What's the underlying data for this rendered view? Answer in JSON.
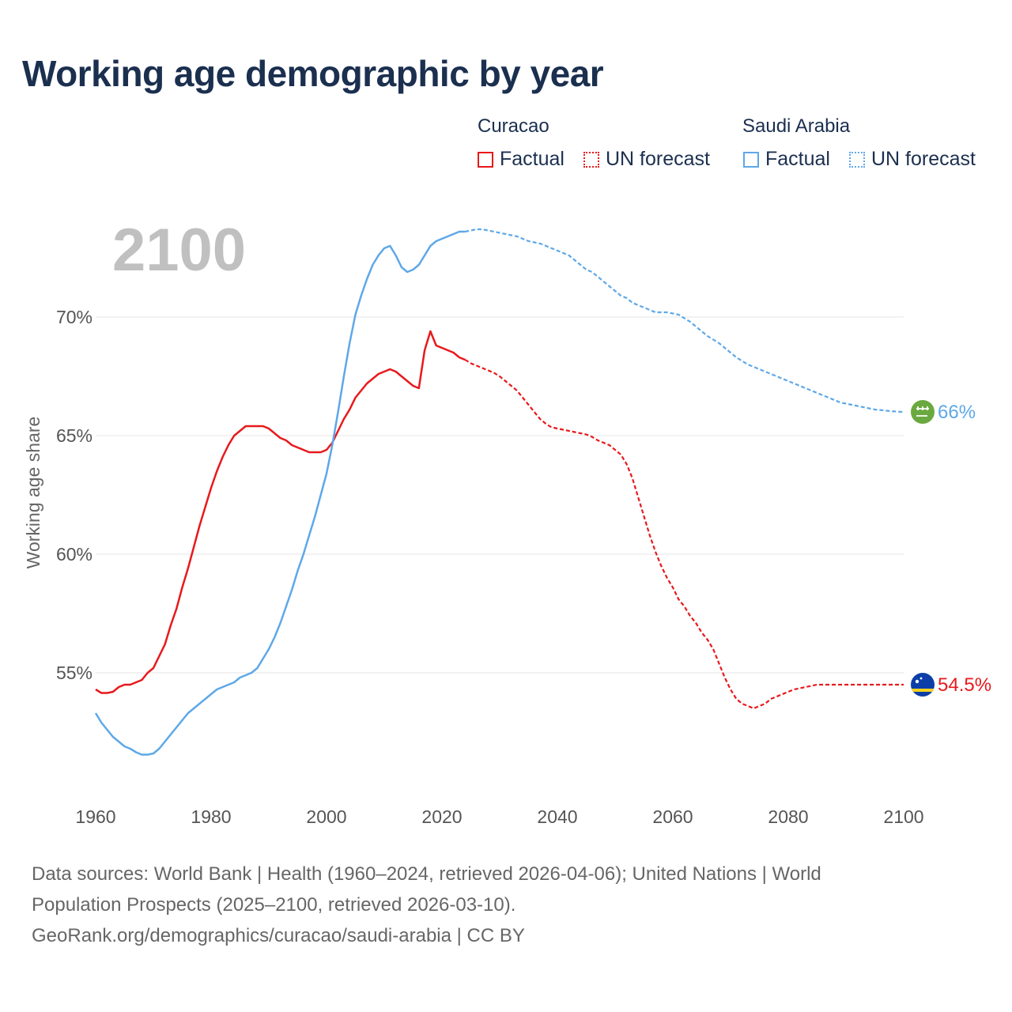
{
  "chart_data": {
    "type": "line",
    "title": "Working age demographic by year",
    "ylabel": "Working age share",
    "xlabel": "",
    "xlim": [
      1960,
      2100
    ],
    "ylim": [
      51,
      73.5
    ],
    "x_ticks": [
      1960,
      1980,
      2000,
      2020,
      2040,
      2060,
      2080,
      2100
    ],
    "y_ticks": [
      {
        "value": 55,
        "label": "55%"
      },
      {
        "value": 60,
        "label": "60%"
      },
      {
        "value": 65,
        "label": "65%"
      },
      {
        "value": 70,
        "label": "70%"
      }
    ],
    "year_overlay": "2100",
    "factual_end_year": 2024,
    "series": [
      {
        "name": "Curacao",
        "color": "#e8191c",
        "end_label": "54.5%",
        "flag": "curacao-flag",
        "points": [
          [
            1960,
            54.3
          ],
          [
            1961,
            54.15
          ],
          [
            1962,
            54.15
          ],
          [
            1963,
            54.2
          ],
          [
            1964,
            54.4
          ],
          [
            1965,
            54.5
          ],
          [
            1966,
            54.5
          ],
          [
            1967,
            54.6
          ],
          [
            1968,
            54.7
          ],
          [
            1969,
            55.0
          ],
          [
            1970,
            55.2
          ],
          [
            1971,
            55.7
          ],
          [
            1972,
            56.2
          ],
          [
            1973,
            57.0
          ],
          [
            1974,
            57.7
          ],
          [
            1975,
            58.6
          ],
          [
            1976,
            59.4
          ],
          [
            1977,
            60.3
          ],
          [
            1978,
            61.2
          ],
          [
            1979,
            62.0
          ],
          [
            1980,
            62.8
          ],
          [
            1981,
            63.5
          ],
          [
            1982,
            64.1
          ],
          [
            1983,
            64.6
          ],
          [
            1984,
            65.0
          ],
          [
            1985,
            65.2
          ],
          [
            1986,
            65.4
          ],
          [
            1987,
            65.4
          ],
          [
            1988,
            65.4
          ],
          [
            1989,
            65.4
          ],
          [
            1990,
            65.3
          ],
          [
            1991,
            65.1
          ],
          [
            1992,
            64.9
          ],
          [
            1993,
            64.8
          ],
          [
            1994,
            64.6
          ],
          [
            1995,
            64.5
          ],
          [
            1996,
            64.4
          ],
          [
            1997,
            64.3
          ],
          [
            1998,
            64.3
          ],
          [
            1999,
            64.3
          ],
          [
            2000,
            64.4
          ],
          [
            2001,
            64.7
          ],
          [
            2002,
            65.2
          ],
          [
            2003,
            65.7
          ],
          [
            2004,
            66.1
          ],
          [
            2005,
            66.6
          ],
          [
            2006,
            66.9
          ],
          [
            2007,
            67.2
          ],
          [
            2008,
            67.4
          ],
          [
            2009,
            67.6
          ],
          [
            2010,
            67.7
          ],
          [
            2011,
            67.8
          ],
          [
            2012,
            67.7
          ],
          [
            2013,
            67.5
          ],
          [
            2014,
            67.3
          ],
          [
            2015,
            67.1
          ],
          [
            2016,
            67.0
          ],
          [
            2017,
            68.6
          ],
          [
            2018,
            69.4
          ],
          [
            2019,
            68.8
          ],
          [
            2020,
            68.7
          ],
          [
            2021,
            68.6
          ],
          [
            2022,
            68.5
          ],
          [
            2023,
            68.3
          ],
          [
            2024,
            68.2
          ],
          [
            2025,
            68.05
          ],
          [
            2026,
            67.95
          ],
          [
            2027,
            67.85
          ],
          [
            2028,
            67.75
          ],
          [
            2029,
            67.65
          ],
          [
            2030,
            67.5
          ],
          [
            2031,
            67.3
          ],
          [
            2032,
            67.1
          ],
          [
            2033,
            66.9
          ],
          [
            2034,
            66.6
          ],
          [
            2035,
            66.3
          ],
          [
            2036,
            66.0
          ],
          [
            2037,
            65.7
          ],
          [
            2038,
            65.5
          ],
          [
            2039,
            65.35
          ],
          [
            2040,
            65.3
          ],
          [
            2041,
            65.25
          ],
          [
            2042,
            65.2
          ],
          [
            2043,
            65.15
          ],
          [
            2044,
            65.1
          ],
          [
            2045,
            65.05
          ],
          [
            2046,
            64.95
          ],
          [
            2047,
            64.8
          ],
          [
            2048,
            64.7
          ],
          [
            2049,
            64.6
          ],
          [
            2050,
            64.4
          ],
          [
            2051,
            64.2
          ],
          [
            2052,
            63.8
          ],
          [
            2053,
            63.2
          ],
          [
            2054,
            62.4
          ],
          [
            2055,
            61.6
          ],
          [
            2056,
            60.8
          ],
          [
            2057,
            60.1
          ],
          [
            2058,
            59.5
          ],
          [
            2059,
            59.0
          ],
          [
            2060,
            58.6
          ],
          [
            2061,
            58.1
          ],
          [
            2062,
            57.8
          ],
          [
            2063,
            57.4
          ],
          [
            2064,
            57.1
          ],
          [
            2065,
            56.7
          ],
          [
            2066,
            56.4
          ],
          [
            2067,
            56.0
          ],
          [
            2068,
            55.4
          ],
          [
            2069,
            54.8
          ],
          [
            2070,
            54.3
          ],
          [
            2071,
            53.9
          ],
          [
            2072,
            53.7
          ],
          [
            2073,
            53.6
          ],
          [
            2074,
            53.5
          ],
          [
            2075,
            53.6
          ],
          [
            2076,
            53.7
          ],
          [
            2077,
            53.9
          ],
          [
            2078,
            54.0
          ],
          [
            2079,
            54.1
          ],
          [
            2080,
            54.2
          ],
          [
            2081,
            54.3
          ],
          [
            2082,
            54.35
          ],
          [
            2083,
            54.4
          ],
          [
            2084,
            54.45
          ],
          [
            2085,
            54.5
          ],
          [
            2086,
            54.5
          ],
          [
            2087,
            54.5
          ],
          [
            2088,
            54.5
          ],
          [
            2089,
            54.5
          ],
          [
            2090,
            54.5
          ],
          [
            2091,
            54.5
          ],
          [
            2092,
            54.5
          ],
          [
            2093,
            54.5
          ],
          [
            2094,
            54.5
          ],
          [
            2095,
            54.5
          ],
          [
            2096,
            54.5
          ],
          [
            2097,
            54.5
          ],
          [
            2098,
            54.5
          ],
          [
            2099,
            54.5
          ],
          [
            2100,
            54.5
          ]
        ]
      },
      {
        "name": "Saudi Arabia",
        "color": "#5ea8e8",
        "end_label": "66%",
        "flag": "saudi-arabia-flag",
        "points": [
          [
            1960,
            53.3
          ],
          [
            1961,
            52.9
          ],
          [
            1962,
            52.6
          ],
          [
            1963,
            52.3
          ],
          [
            1964,
            52.1
          ],
          [
            1965,
            51.9
          ],
          [
            1966,
            51.8
          ],
          [
            1967,
            51.65
          ],
          [
            1968,
            51.55
          ],
          [
            1969,
            51.55
          ],
          [
            1970,
            51.6
          ],
          [
            1971,
            51.8
          ],
          [
            1972,
            52.1
          ],
          [
            1973,
            52.4
          ],
          [
            1974,
            52.7
          ],
          [
            1975,
            53.0
          ],
          [
            1976,
            53.3
          ],
          [
            1977,
            53.5
          ],
          [
            1978,
            53.7
          ],
          [
            1979,
            53.9
          ],
          [
            1980,
            54.1
          ],
          [
            1981,
            54.3
          ],
          [
            1982,
            54.4
          ],
          [
            1983,
            54.5
          ],
          [
            1984,
            54.6
          ],
          [
            1985,
            54.8
          ],
          [
            1986,
            54.9
          ],
          [
            1987,
            55.0
          ],
          [
            1988,
            55.2
          ],
          [
            1989,
            55.6
          ],
          [
            1990,
            56.0
          ],
          [
            1991,
            56.5
          ],
          [
            1992,
            57.1
          ],
          [
            1993,
            57.8
          ],
          [
            1994,
            58.5
          ],
          [
            1995,
            59.3
          ],
          [
            1996,
            60.0
          ],
          [
            1997,
            60.8
          ],
          [
            1998,
            61.6
          ],
          [
            1999,
            62.5
          ],
          [
            2000,
            63.4
          ],
          [
            2001,
            64.6
          ],
          [
            2002,
            66.0
          ],
          [
            2003,
            67.5
          ],
          [
            2004,
            68.9
          ],
          [
            2005,
            70.1
          ],
          [
            2006,
            70.9
          ],
          [
            2007,
            71.6
          ],
          [
            2008,
            72.2
          ],
          [
            2009,
            72.6
          ],
          [
            2010,
            72.9
          ],
          [
            2011,
            73.0
          ],
          [
            2012,
            72.6
          ],
          [
            2013,
            72.1
          ],
          [
            2014,
            71.9
          ],
          [
            2015,
            72.0
          ],
          [
            2016,
            72.2
          ],
          [
            2017,
            72.6
          ],
          [
            2018,
            73.0
          ],
          [
            2019,
            73.2
          ],
          [
            2020,
            73.3
          ],
          [
            2021,
            73.4
          ],
          [
            2022,
            73.5
          ],
          [
            2023,
            73.6
          ],
          [
            2024,
            73.6
          ],
          [
            2025,
            73.65
          ],
          [
            2026,
            73.7
          ],
          [
            2027,
            73.7
          ],
          [
            2028,
            73.65
          ],
          [
            2029,
            73.6
          ],
          [
            2030,
            73.55
          ],
          [
            2031,
            73.5
          ],
          [
            2032,
            73.45
          ],
          [
            2033,
            73.4
          ],
          [
            2034,
            73.3
          ],
          [
            2035,
            73.2
          ],
          [
            2036,
            73.15
          ],
          [
            2037,
            73.1
          ],
          [
            2038,
            73.0
          ],
          [
            2039,
            72.9
          ],
          [
            2040,
            72.8
          ],
          [
            2041,
            72.7
          ],
          [
            2042,
            72.6
          ],
          [
            2043,
            72.4
          ],
          [
            2044,
            72.2
          ],
          [
            2045,
            72.0
          ],
          [
            2046,
            71.9
          ],
          [
            2047,
            71.7
          ],
          [
            2048,
            71.5
          ],
          [
            2049,
            71.3
          ],
          [
            2050,
            71.1
          ],
          [
            2051,
            70.9
          ],
          [
            2052,
            70.8
          ],
          [
            2053,
            70.6
          ],
          [
            2054,
            70.5
          ],
          [
            2055,
            70.4
          ],
          [
            2056,
            70.3
          ],
          [
            2057,
            70.2
          ],
          [
            2058,
            70.2
          ],
          [
            2059,
            70.2
          ],
          [
            2060,
            70.15
          ],
          [
            2061,
            70.1
          ],
          [
            2062,
            69.95
          ],
          [
            2063,
            69.8
          ],
          [
            2064,
            69.6
          ],
          [
            2065,
            69.4
          ],
          [
            2066,
            69.2
          ],
          [
            2067,
            69.05
          ],
          [
            2068,
            68.9
          ],
          [
            2069,
            68.7
          ],
          [
            2070,
            68.5
          ],
          [
            2071,
            68.3
          ],
          [
            2072,
            68.15
          ],
          [
            2073,
            68.0
          ],
          [
            2074,
            67.9
          ],
          [
            2075,
            67.8
          ],
          [
            2076,
            67.7
          ],
          [
            2077,
            67.6
          ],
          [
            2078,
            67.5
          ],
          [
            2079,
            67.4
          ],
          [
            2080,
            67.3
          ],
          [
            2081,
            67.2
          ],
          [
            2082,
            67.1
          ],
          [
            2083,
            67.0
          ],
          [
            2084,
            66.9
          ],
          [
            2085,
            66.8
          ],
          [
            2086,
            66.7
          ],
          [
            2087,
            66.6
          ],
          [
            2088,
            66.5
          ],
          [
            2089,
            66.4
          ],
          [
            2090,
            66.35
          ],
          [
            2091,
            66.3
          ],
          [
            2092,
            66.25
          ],
          [
            2093,
            66.2
          ],
          [
            2094,
            66.15
          ],
          [
            2095,
            66.1
          ],
          [
            2096,
            66.08
          ],
          [
            2097,
            66.05
          ],
          [
            2098,
            66.03
          ],
          [
            2099,
            66.01
          ],
          [
            2100,
            66.0
          ]
        ]
      }
    ]
  },
  "legend": {
    "groups": [
      {
        "title": "Curacao",
        "factual": "Factual",
        "forecast": "UN forecast",
        "color": "#e8191c"
      },
      {
        "title": "Saudi Arabia",
        "factual": "Factual",
        "forecast": "UN forecast",
        "color": "#5ea8e8"
      }
    ]
  },
  "footer": {
    "line1": "Data sources: World Bank | Health (1960–2024, retrieved 2026-04-06); United Nations | World",
    "line2": "Population Prospects (2025–2100, retrieved 2026-03-10).",
    "line3": "GeoRank.org/demographics/curacao/saudi-arabia | CC BY"
  }
}
